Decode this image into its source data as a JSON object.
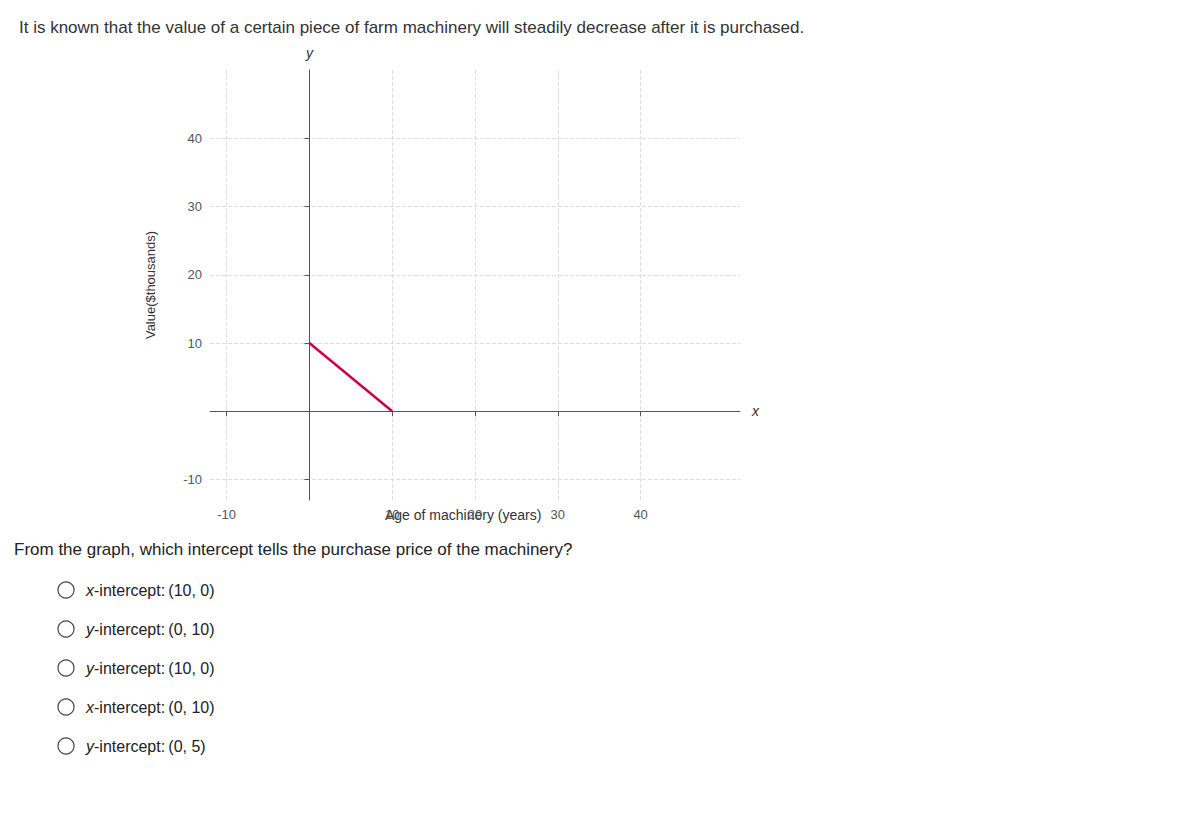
{
  "chart_data": {
    "type": "line",
    "title": "It is known that the value of a certain piece of farm machinery will steadily decrease after it is purchased.",
    "x": [
      0,
      10
    ],
    "values": [
      10,
      0
    ],
    "color": "#cc0044",
    "xlim": [
      -12,
      52
    ],
    "ylim": [
      -13,
      50
    ],
    "xticks": [
      -10,
      10,
      20,
      30,
      40
    ],
    "yticks": [
      -10,
      10,
      20,
      30,
      40
    ],
    "grid": true,
    "xlabel": "Age of machinery (years)",
    "ylabel": "Value($thousands)",
    "x_axis_name": "x",
    "y_axis_name": "y",
    "question": "From the graph, which intercept tells the purchase price of the machinery?",
    "options": [
      "x-intercept: (10, 0)",
      "y-intercept: (0, 10)",
      "y-intercept: (10, 0)",
      "x-intercept: (0, 10)",
      "y-intercept: (0, 5)"
    ]
  }
}
